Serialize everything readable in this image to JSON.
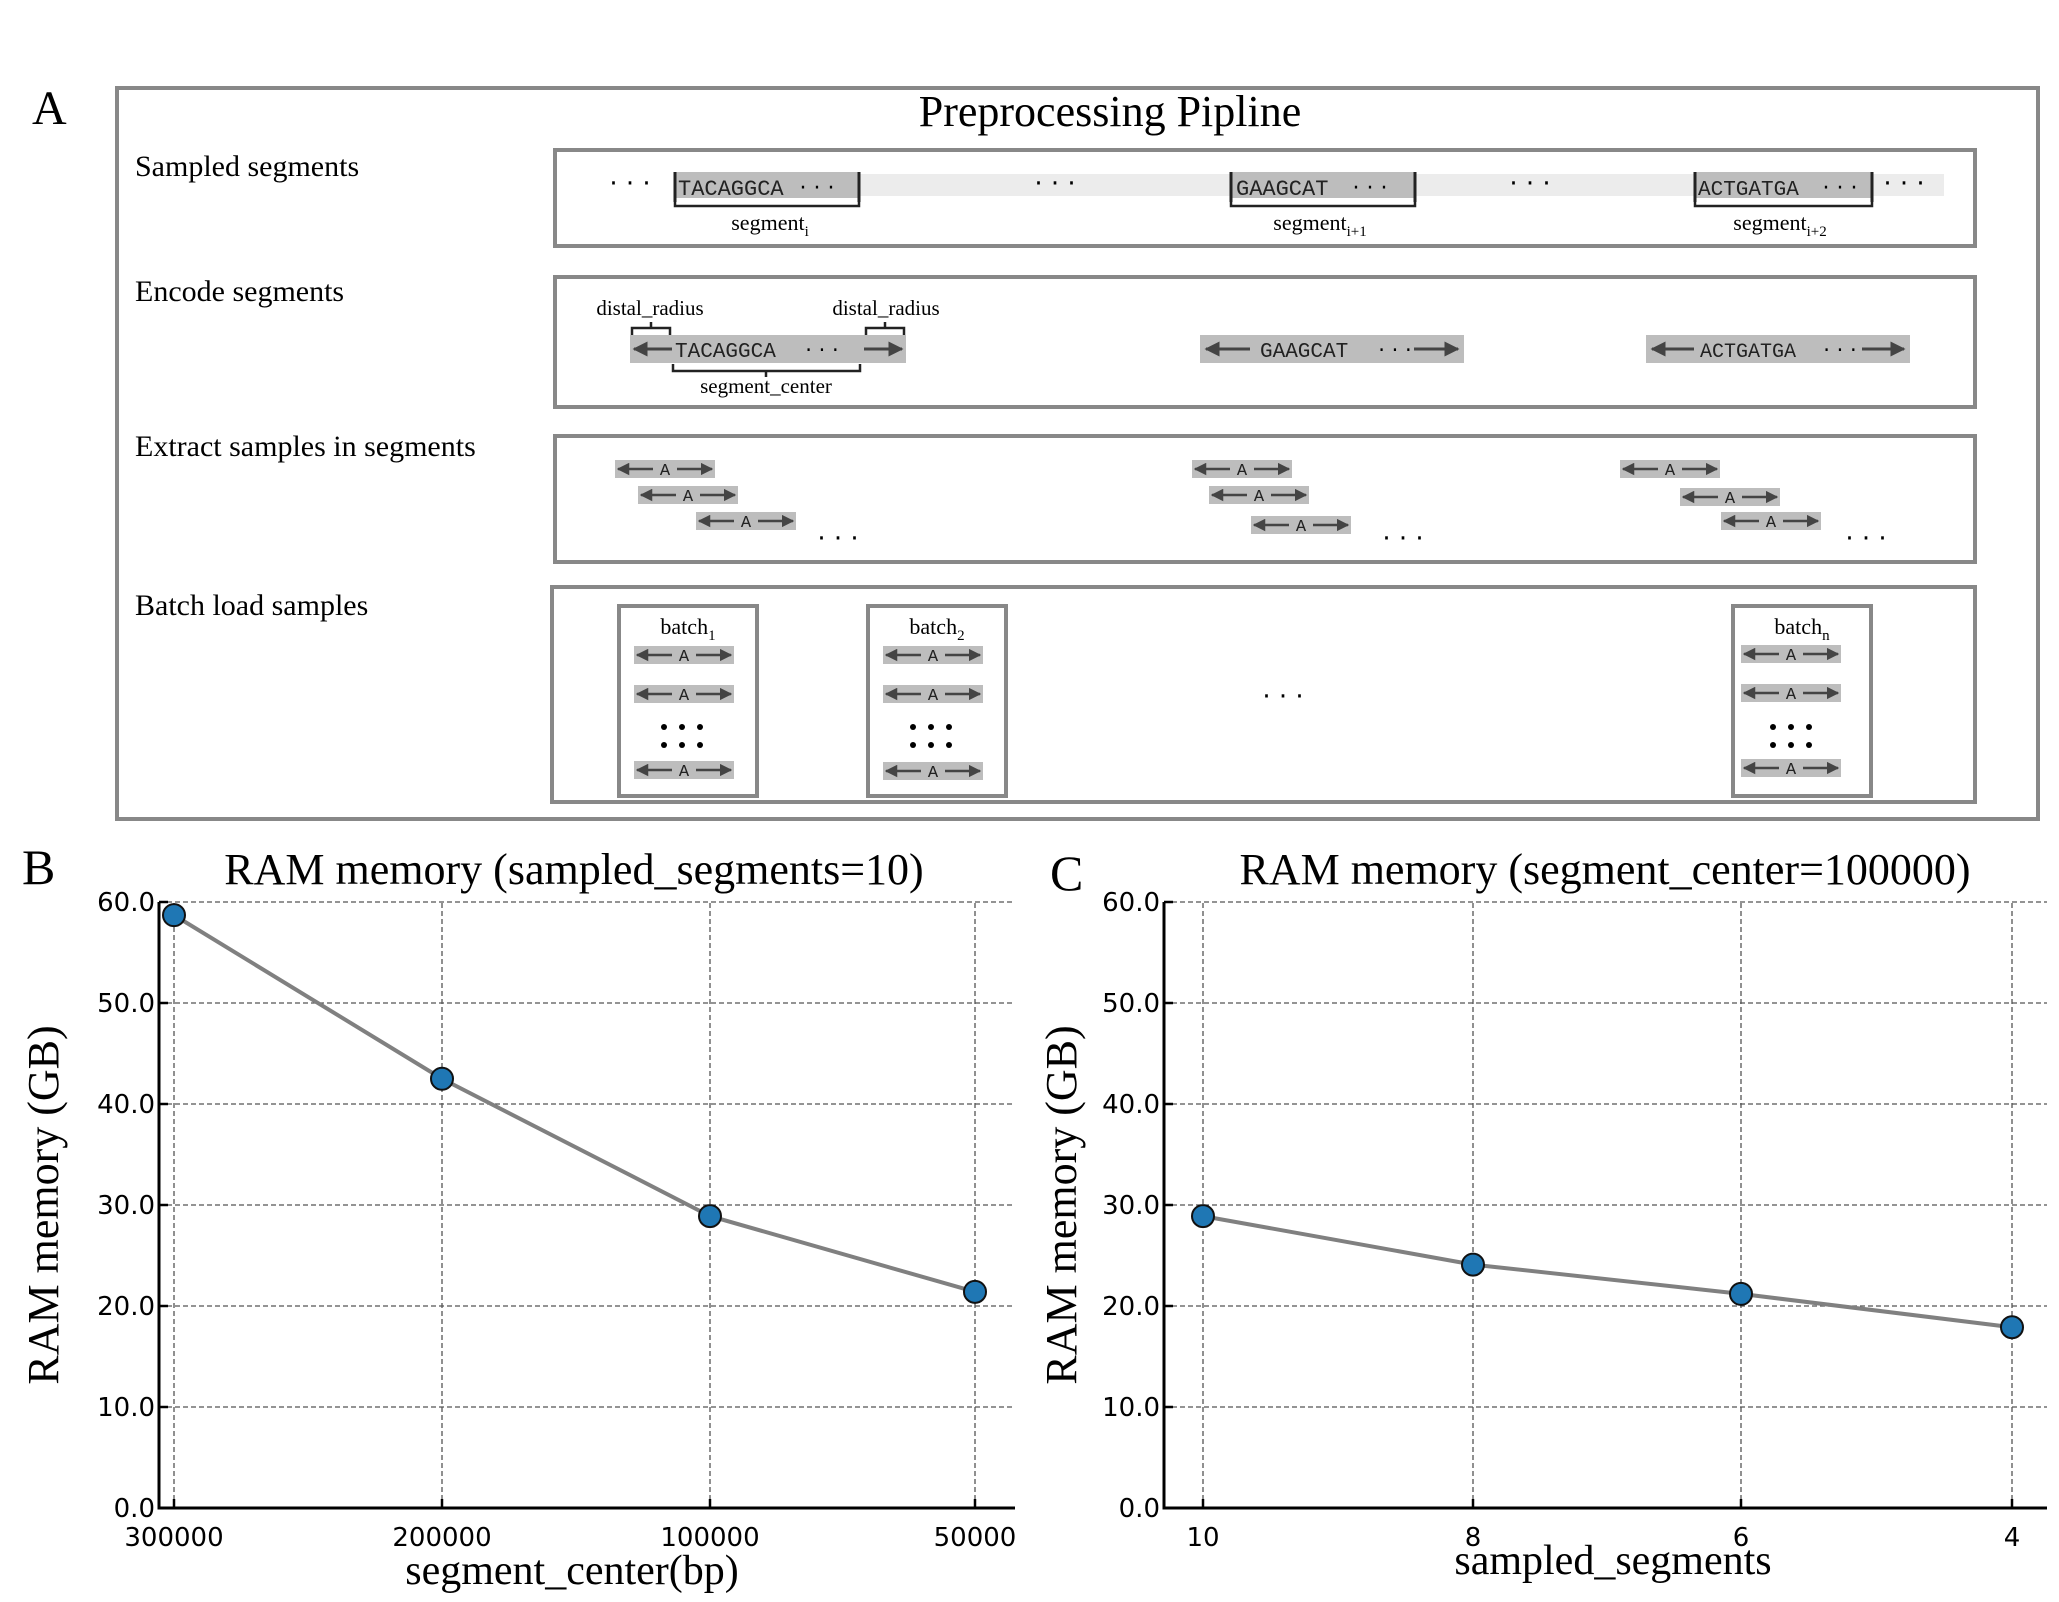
{
  "panel_labels": {
    "a": "A",
    "b": "B",
    "c": "C"
  },
  "panel_a": {
    "title": "Preprocessing Pipline",
    "rows": {
      "sampled": "Sampled segments",
      "encode": "Encode segments",
      "extract": "Extract samples in  segments",
      "batch": "Batch load samples"
    },
    "ellipsis": "· · ·",
    "segments": [
      {
        "seq": "TACAGGCA",
        "label": "segment",
        "sub": "i"
      },
      {
        "seq": "GAAGCAT",
        "label": "segment",
        "sub": "i+1"
      },
      {
        "seq": "ACTGATGA",
        "label": "segment",
        "sub": "i+2"
      }
    ],
    "distal_radius": "distal_radius",
    "segment_center": "segment_center",
    "sample_base": "A",
    "batches": [
      {
        "label": "batch",
        "sub": "1"
      },
      {
        "label": "batch",
        "sub": "2"
      },
      {
        "label": "batch",
        "sub": "n"
      }
    ]
  },
  "colors": {
    "frame": "#888888",
    "highlight": "#bdbdbd",
    "track": "#ececec",
    "marker": "#1f77b4",
    "line": "#808080",
    "arrow": "#444444"
  },
  "chart_data": [
    {
      "type": "line",
      "title": "RAM memory (sampled_segments=10)",
      "xlabel": "segment_center(bp)",
      "ylabel": "RAM memory (GB)",
      "categories": [
        "300000",
        "200000",
        "100000",
        "50000"
      ],
      "values": [
        58.7,
        42.5,
        28.9,
        21.4
      ],
      "ylim": [
        0,
        60
      ],
      "yticks": [
        "0.0",
        "10.0",
        "20.0",
        "30.0",
        "40.0",
        "50.0",
        "60.0"
      ],
      "grid": true
    },
    {
      "type": "line",
      "title": "RAM memory (segment_center=100000)",
      "xlabel": "sampled_segments",
      "ylabel": "RAM memory (GB)",
      "categories": [
        "10",
        "8",
        "6",
        "4"
      ],
      "values": [
        28.9,
        24.1,
        21.2,
        17.9
      ],
      "ylim": [
        0,
        60
      ],
      "yticks": [
        "0.0",
        "10.0",
        "20.0",
        "30.0",
        "40.0",
        "50.0",
        "60.0"
      ],
      "grid": true
    }
  ]
}
